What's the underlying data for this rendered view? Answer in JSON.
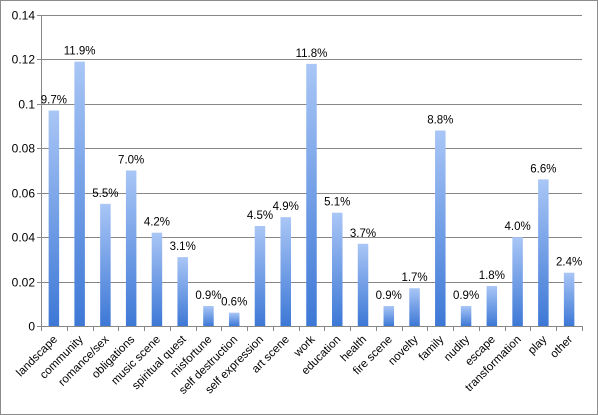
{
  "chart_data": {
    "type": "bar",
    "title": "",
    "xlabel": "",
    "ylabel": "",
    "ylim": [
      0,
      0.14
    ],
    "yticks": [
      "0",
      "0.02",
      "0.04",
      "0.06",
      "0.08",
      "0.1",
      "0.12",
      "0.14"
    ],
    "ytick_values": [
      0,
      0.02,
      0.04,
      0.06,
      0.08,
      0.1,
      0.12,
      0.14
    ],
    "grid": true,
    "legend": "none",
    "categories": [
      "landscape",
      "community",
      "romance/sex",
      "obligations",
      "music scene",
      "spiritual quest",
      "misfortune",
      "self destruction",
      "self expression",
      "art scene",
      "work",
      "education",
      "health",
      "fire scene",
      "novelty",
      "family",
      "nudity",
      "escape",
      "transformation",
      "play",
      "other"
    ],
    "values": [
      0.097,
      0.119,
      0.055,
      0.07,
      0.042,
      0.031,
      0.009,
      0.006,
      0.045,
      0.049,
      0.118,
      0.051,
      0.037,
      0.009,
      0.017,
      0.088,
      0.009,
      0.018,
      0.04,
      0.066,
      0.024
    ],
    "data_labels": [
      "9.7%",
      "11.9%",
      "5.5%",
      "7.0%",
      "4.2%",
      "3.1%",
      "0.9%",
      "0.6%",
      "4.5%",
      "4.9%",
      "11.8%",
      "5.1%",
      "3.7%",
      "0.9%",
      "1.7%",
      "8.8%",
      "0.9%",
      "1.8%",
      "4.0%",
      "6.6%",
      "2.4%"
    ],
    "colors": {
      "bar_top": "#a9c6f6",
      "bar_bottom": "#3d78d6",
      "grid": "#878787",
      "axis": "#878787",
      "frame": "#8c8c8c"
    }
  }
}
